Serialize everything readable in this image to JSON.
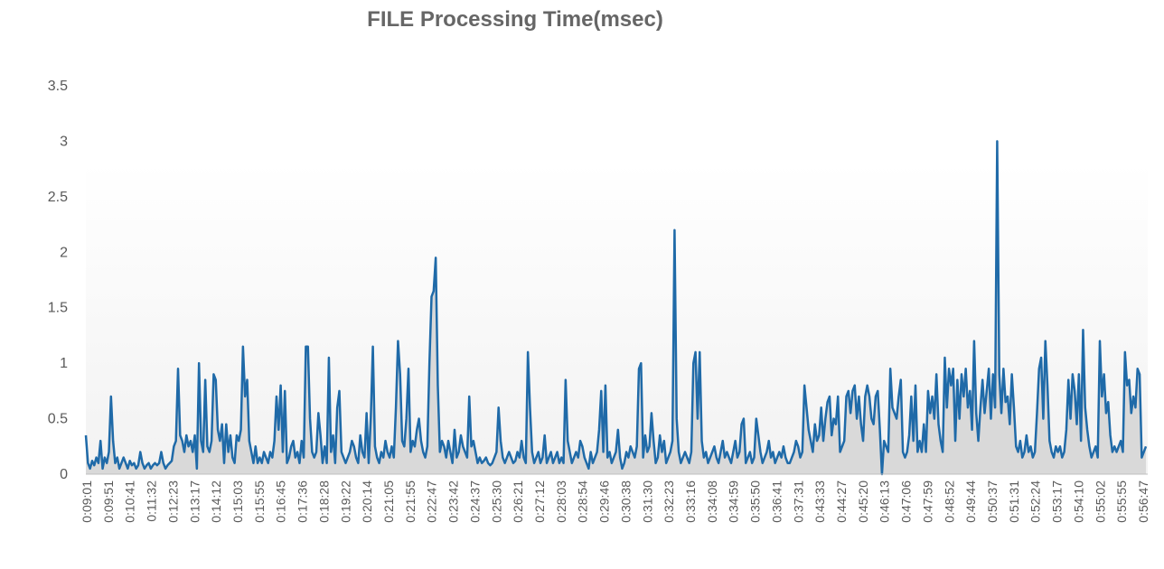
{
  "chart_data": {
    "type": "area",
    "title": "FILE Processing Time(msec)",
    "xlabel": "",
    "ylabel": "",
    "ylim": [
      0,
      3.5
    ],
    "y_ticks": [
      "0",
      "0.5",
      "1",
      "1.5",
      "2",
      "2.5",
      "3",
      "3.5"
    ],
    "grid": false,
    "legend": "none",
    "colors": {
      "line": "#1f6aa8",
      "fill": "#d9d9d9",
      "background_top": "#ffffff",
      "background_bottom": "#f2f2f2"
    },
    "x_tick_labels": [
      "0:09:01",
      "0:09:51",
      "0:10:41",
      "0:11:32",
      "0:12:23",
      "0:13:17",
      "0:14:12",
      "0:15:03",
      "0:15:55",
      "0:16:45",
      "0:17:36",
      "0:18:28",
      "0:19:22",
      "0:20:14",
      "0:21:05",
      "0:21:55",
      "0:22:47",
      "0:23:42",
      "0:24:37",
      "0:25:30",
      "0:26:21",
      "0:27:12",
      "0:28:03",
      "0:28:54",
      "0:29:46",
      "0:30:38",
      "0:31:30",
      "0:32:23",
      "0:33:16",
      "0:34:08",
      "0:34:59",
      "0:35:50",
      "0:36:41",
      "0:37:31",
      "0:43:33",
      "0:44:27",
      "0:45:20",
      "0:46:13",
      "0:47:06",
      "0:47:59",
      "0:48:52",
      "0:49:44",
      "0:50:37",
      "0:51:31",
      "0:52:24",
      "0:53:17",
      "0:54:10",
      "0:55:02",
      "0:55:55",
      "0:56:47"
    ],
    "values": [
      0.35,
      0.1,
      0.05,
      0.12,
      0.08,
      0.15,
      0.1,
      0.3,
      0.05,
      0.15,
      0.1,
      0.2,
      0.7,
      0.3,
      0.1,
      0.15,
      0.05,
      0.1,
      0.15,
      0.1,
      0.05,
      0.12,
      0.08,
      0.1,
      0.05,
      0.08,
      0.2,
      0.1,
      0.05,
      0.08,
      0.1,
      0.05,
      0.08,
      0.1,
      0.08,
      0.1,
      0.2,
      0.1,
      0.05,
      0.08,
      0.1,
      0.12,
      0.25,
      0.3,
      0.95,
      0.35,
      0.3,
      0.2,
      0.35,
      0.25,
      0.3,
      0.2,
      0.35,
      0.05,
      1.0,
      0.3,
      0.2,
      0.85,
      0.25,
      0.2,
      0.3,
      0.9,
      0.85,
      0.4,
      0.3,
      0.45,
      0.1,
      0.45,
      0.2,
      0.35,
      0.15,
      0.1,
      0.35,
      0.3,
      0.4,
      1.15,
      0.7,
      0.85,
      0.3,
      0.2,
      0.1,
      0.25,
      0.1,
      0.15,
      0.1,
      0.2,
      0.15,
      0.1,
      0.2,
      0.15,
      0.3,
      0.7,
      0.4,
      0.8,
      0.2,
      0.75,
      0.1,
      0.15,
      0.25,
      0.3,
      0.15,
      0.2,
      0.1,
      0.3,
      0.15,
      1.15,
      1.15,
      0.5,
      0.2,
      0.15,
      0.2,
      0.55,
      0.35,
      0.1,
      0.25,
      0.1,
      1.05,
      0.2,
      0.35,
      0.1,
      0.6,
      0.75,
      0.2,
      0.15,
      0.1,
      0.15,
      0.2,
      0.3,
      0.25,
      0.15,
      0.1,
      0.35,
      0.2,
      0.15,
      0.55,
      0.1,
      0.5,
      1.15,
      0.25,
      0.15,
      0.1,
      0.2,
      0.15,
      0.3,
      0.2,
      0.15,
      0.25,
      0.15,
      0.6,
      1.2,
      0.9,
      0.3,
      0.25,
      0.5,
      0.95,
      0.2,
      0.3,
      0.25,
      0.4,
      0.5,
      0.3,
      0.2,
      0.15,
      0.25,
      1.0,
      1.6,
      1.65,
      1.95,
      0.8,
      0.2,
      0.3,
      0.25,
      0.15,
      0.3,
      0.2,
      0.1,
      0.4,
      0.15,
      0.2,
      0.35,
      0.25,
      0.2,
      0.15,
      0.7,
      0.25,
      0.3,
      0.2,
      0.1,
      0.15,
      0.1,
      0.12,
      0.15,
      0.1,
      0.08,
      0.1,
      0.15,
      0.2,
      0.6,
      0.3,
      0.15,
      0.1,
      0.15,
      0.2,
      0.15,
      0.1,
      0.12,
      0.2,
      0.15,
      0.3,
      0.15,
      0.1,
      1.1,
      0.6,
      0.2,
      0.1,
      0.15,
      0.2,
      0.1,
      0.15,
      0.35,
      0.1,
      0.15,
      0.2,
      0.1,
      0.15,
      0.2,
      0.1,
      0.15,
      0.1,
      0.85,
      0.3,
      0.2,
      0.1,
      0.15,
      0.2,
      0.15,
      0.3,
      0.25,
      0.15,
      0.1,
      0.05,
      0.2,
      0.1,
      0.15,
      0.2,
      0.4,
      0.75,
      0.2,
      0.8,
      0.15,
      0.2,
      0.1,
      0.15,
      0.2,
      0.4,
      0.15,
      0.05,
      0.1,
      0.2,
      0.15,
      0.25,
      0.2,
      0.15,
      0.25,
      0.95,
      1.0,
      0.15,
      0.35,
      0.2,
      0.25,
      0.55,
      0.3,
      0.1,
      0.15,
      0.35,
      0.2,
      0.3,
      0.1,
      0.15,
      0.2,
      0.3,
      2.2,
      0.5,
      0.2,
      0.1,
      0.15,
      0.2,
      0.15,
      0.1,
      0.2,
      1.0,
      1.1,
      0.5,
      1.1,
      0.3,
      0.15,
      0.2,
      0.1,
      0.15,
      0.2,
      0.25,
      0.15,
      0.1,
      0.2,
      0.3,
      0.15,
      0.2,
      0.15,
      0.1,
      0.2,
      0.3,
      0.15,
      0.2,
      0.45,
      0.5,
      0.1,
      0.15,
      0.2,
      0.1,
      0.15,
      0.5,
      0.35,
      0.2,
      0.1,
      0.15,
      0.2,
      0.3,
      0.15,
      0.2,
      0.1,
      0.15,
      0.2,
      0.15,
      0.25,
      0.15,
      0.1,
      0.1,
      0.15,
      0.2,
      0.3,
      0.25,
      0.15,
      0.2,
      0.8,
      0.6,
      0.4,
      0.3,
      0.2,
      0.45,
      0.3,
      0.35,
      0.6,
      0.3,
      0.5,
      0.65,
      0.7,
      0.35,
      0.5,
      0.45,
      0.7,
      0.2,
      0.25,
      0.3,
      0.7,
      0.75,
      0.55,
      0.75,
      0.8,
      0.5,
      0.7,
      0.45,
      0.3,
      0.7,
      0.8,
      0.7,
      0.5,
      0.45,
      0.7,
      0.75,
      0.4,
      0.0,
      0.3,
      0.25,
      0.2,
      0.95,
      0.6,
      0.55,
      0.5,
      0.7,
      0.85,
      0.2,
      0.15,
      0.2,
      0.35,
      0.7,
      0.3,
      0.8,
      0.2,
      0.3,
      0.2,
      0.45,
      0.2,
      0.75,
      0.55,
      0.7,
      0.5,
      0.9,
      0.45,
      0.3,
      0.2,
      1.05,
      0.6,
      0.95,
      0.8,
      0.95,
      0.3,
      0.85,
      0.5,
      0.9,
      0.7,
      0.95,
      0.6,
      0.75,
      0.4,
      1.2,
      0.55,
      0.3,
      0.6,
      0.85,
      0.55,
      0.75,
      0.95,
      0.5,
      0.9,
      0.6,
      3.0,
      0.9,
      0.55,
      0.95,
      0.65,
      0.7,
      0.45,
      0.9,
      0.6,
      0.25,
      0.2,
      0.3,
      0.15,
      0.2,
      0.35,
      0.2,
      0.25,
      0.15,
      0.2,
      0.55,
      0.95,
      1.05,
      0.5,
      1.2,
      0.8,
      0.3,
      0.2,
      0.15,
      0.25,
      0.2,
      0.25,
      0.15,
      0.2,
      0.4,
      0.85,
      0.5,
      0.9,
      0.75,
      0.45,
      0.9,
      0.3,
      1.3,
      0.6,
      0.4,
      0.25,
      0.15,
      0.2,
      0.25,
      0.15,
      1.2,
      0.7,
      0.9,
      0.55,
      0.65,
      0.35,
      0.2,
      0.25,
      0.2,
      0.25,
      0.3,
      0.2,
      1.1,
      0.8,
      0.85,
      0.55,
      0.7,
      0.6,
      0.95,
      0.9,
      0.15,
      0.2,
      0.25
    ]
  }
}
